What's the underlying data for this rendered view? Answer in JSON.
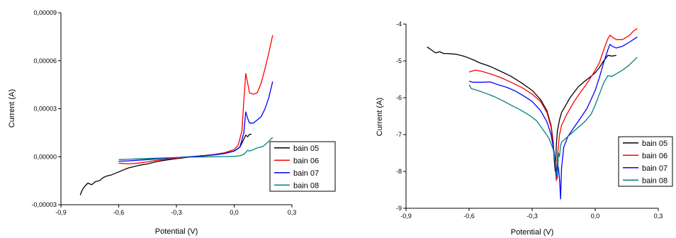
{
  "chart_data": [
    {
      "type": "line",
      "xlabel": "Potential (V)",
      "ylabel": "Current (A)",
      "xlim": [
        -0.9,
        0.3
      ],
      "ylim": [
        -3e-05,
        9e-05
      ],
      "xticks": [
        "-0,9",
        "-0,6",
        "-0,3",
        "0,0",
        "0,3"
      ],
      "xtick_values": [
        -0.9,
        -0.6,
        -0.3,
        0.0,
        0.3
      ],
      "yticks": [
        "-0,00003",
        "0,00000",
        "0,00003",
        "0,00006",
        "0,00009"
      ],
      "ytick_values": [
        -3e-05,
        0.0,
        3e-05,
        6e-05,
        9e-05
      ],
      "legend_position": "bottom-right",
      "series": [
        {
          "name": "bain 05",
          "color": "#000000",
          "points": [
            [
              -0.8,
              -2.4e-05
            ],
            [
              -0.79,
              -2.1e-05
            ],
            [
              -0.78,
              -1.9e-05
            ],
            [
              -0.76,
              -1.65e-05
            ],
            [
              -0.74,
              -1.75e-05
            ],
            [
              -0.72,
              -1.55e-05
            ],
            [
              -0.7,
              -1.5e-05
            ],
            [
              -0.68,
              -1.3e-05
            ],
            [
              -0.66,
              -1.2e-05
            ],
            [
              -0.64,
              -1.15e-05
            ],
            [
              -0.6,
              -9.5e-06
            ],
            [
              -0.55,
              -7e-06
            ],
            [
              -0.5,
              -5.5e-06
            ],
            [
              -0.45,
              -4.5e-06
            ],
            [
              -0.4,
              -3e-06
            ],
            [
              -0.35,
              -2e-06
            ],
            [
              -0.3,
              -1.2e-06
            ],
            [
              -0.25,
              -5e-07
            ],
            [
              -0.2,
              1e-07
            ],
            [
              -0.15,
              6e-07
            ],
            [
              -0.1,
              1.2e-06
            ],
            [
              -0.05,
              2e-06
            ],
            [
              0.0,
              3.5e-06
            ],
            [
              0.03,
              6e-06
            ],
            [
              0.05,
              1.1e-05
            ],
            [
              0.06,
              1.35e-05
            ],
            [
              0.07,
              1.25e-05
            ],
            [
              0.08,
              1.4e-05
            ],
            [
              0.09,
              1.4e-05
            ]
          ]
        },
        {
          "name": "bain 06",
          "color": "#ff0000",
          "points": [
            [
              -0.6,
              -4e-06
            ],
            [
              -0.55,
              -4.5e-06
            ],
            [
              -0.5,
              -4e-06
            ],
            [
              -0.45,
              -3.2e-06
            ],
            [
              -0.4,
              -2.2e-06
            ],
            [
              -0.35,
              -1.5e-06
            ],
            [
              -0.3,
              -8e-07
            ],
            [
              -0.25,
              -3e-07
            ],
            [
              -0.2,
              3e-07
            ],
            [
              -0.15,
              8e-07
            ],
            [
              -0.1,
              1.5e-06
            ],
            [
              -0.05,
              2.5e-06
            ],
            [
              0.0,
              4.5e-06
            ],
            [
              0.02,
              7e-06
            ],
            [
              0.04,
              1.6e-05
            ],
            [
              0.05,
              3.5e-05
            ],
            [
              0.06,
              5.2e-05
            ],
            [
              0.07,
              4.6e-05
            ],
            [
              0.08,
              4e-05
            ],
            [
              0.1,
              3.9e-05
            ],
            [
              0.12,
              4e-05
            ],
            [
              0.14,
              4.6e-05
            ],
            [
              0.16,
              5.5e-05
            ],
            [
              0.18,
              6.5e-05
            ],
            [
              0.2,
              7.6e-05
            ]
          ]
        },
        {
          "name": "bain 07",
          "color": "#0000ff",
          "points": [
            [
              -0.6,
              -2.8e-06
            ],
            [
              -0.55,
              -2.6e-06
            ],
            [
              -0.5,
              -2.2e-06
            ],
            [
              -0.45,
              -1.8e-06
            ],
            [
              -0.4,
              -1.3e-06
            ],
            [
              -0.35,
              -9e-07
            ],
            [
              -0.3,
              -5e-07
            ],
            [
              -0.25,
              -1e-07
            ],
            [
              -0.2,
              3e-07
            ],
            [
              -0.15,
              7e-07
            ],
            [
              -0.1,
              1.2e-06
            ],
            [
              -0.05,
              2e-06
            ],
            [
              0.0,
              3.5e-06
            ],
            [
              0.03,
              6e-06
            ],
            [
              0.05,
              1.5e-05
            ],
            [
              0.06,
              2.8e-05
            ],
            [
              0.07,
              2.4e-05
            ],
            [
              0.08,
              2.1e-05
            ],
            [
              0.1,
              2.1e-05
            ],
            [
              0.12,
              2.3e-05
            ],
            [
              0.14,
              2.5e-05
            ],
            [
              0.16,
              3e-05
            ],
            [
              0.18,
              3.7e-05
            ],
            [
              0.2,
              4.7e-05
            ]
          ]
        },
        {
          "name": "bain 08",
          "color": "#008080",
          "points": [
            [
              -0.6,
              -1.8e-06
            ],
            [
              -0.55,
              -1.6e-06
            ],
            [
              -0.5,
              -1.3e-06
            ],
            [
              -0.45,
              -1.1e-06
            ],
            [
              -0.4,
              -9e-07
            ],
            [
              -0.35,
              -7e-07
            ],
            [
              -0.3,
              -5e-07
            ],
            [
              -0.25,
              -3e-07
            ],
            [
              -0.2,
              -2e-07
            ],
            [
              -0.15,
              -1e-07
            ],
            [
              -0.1,
              0.0
            ],
            [
              -0.05,
              1e-07
            ],
            [
              0.0,
              2e-07
            ],
            [
              0.03,
              6e-07
            ],
            [
              0.05,
              1.5e-06
            ],
            [
              0.07,
              4e-06
            ],
            [
              0.08,
              3.5e-06
            ],
            [
              0.1,
              4.5e-06
            ],
            [
              0.12,
              5.5e-06
            ],
            [
              0.15,
              6.5e-06
            ],
            [
              0.17,
              8.5e-06
            ],
            [
              0.2,
              1.2e-05
            ]
          ]
        }
      ]
    },
    {
      "type": "line",
      "xlabel": "Potential (V)",
      "ylabel": "Current (A)",
      "xlim": [
        -0.9,
        0.3
      ],
      "ylim": [
        -9,
        -4
      ],
      "xticks": [
        "-0,9",
        "-0,6",
        "-0,3",
        "0,0",
        "0,3"
      ],
      "xtick_values": [
        -0.9,
        -0.6,
        -0.3,
        0.0,
        0.3
      ],
      "yticks": [
        "-9",
        "-8",
        "-7",
        "-6",
        "-5",
        "-4"
      ],
      "ytick_values": [
        -9,
        -8,
        -7,
        -6,
        -5,
        -4
      ],
      "legend_position": "bottom-right",
      "series": [
        {
          "name": "bain 05",
          "color": "#000000",
          "points": [
            [
              -0.8,
              -4.62
            ],
            [
              -0.78,
              -4.7
            ],
            [
              -0.76,
              -4.78
            ],
            [
              -0.74,
              -4.75
            ],
            [
              -0.72,
              -4.8
            ],
            [
              -0.7,
              -4.8
            ],
            [
              -0.66,
              -4.82
            ],
            [
              -0.62,
              -4.88
            ],
            [
              -0.58,
              -4.97
            ],
            [
              -0.55,
              -5.05
            ],
            [
              -0.5,
              -5.15
            ],
            [
              -0.45,
              -5.28
            ],
            [
              -0.4,
              -5.42
            ],
            [
              -0.35,
              -5.6
            ],
            [
              -0.3,
              -5.8
            ],
            [
              -0.26,
              -6.05
            ],
            [
              -0.23,
              -6.35
            ],
            [
              -0.21,
              -6.75
            ],
            [
              -0.2,
              -7.2
            ],
            [
              -0.195,
              -7.7
            ],
            [
              -0.19,
              -8.0
            ],
            [
              -0.185,
              -7.3
            ],
            [
              -0.18,
              -6.9
            ],
            [
              -0.17,
              -6.6
            ],
            [
              -0.16,
              -6.4
            ],
            [
              -0.14,
              -6.2
            ],
            [
              -0.12,
              -6.0
            ],
            [
              -0.1,
              -5.85
            ],
            [
              -0.08,
              -5.7
            ],
            [
              -0.05,
              -5.55
            ],
            [
              -0.02,
              -5.42
            ],
            [
              0.0,
              -5.32
            ],
            [
              0.02,
              -5.18
            ],
            [
              0.04,
              -5.0
            ],
            [
              0.06,
              -4.85
            ],
            [
              0.08,
              -4.87
            ],
            [
              0.1,
              -4.85
            ]
          ]
        },
        {
          "name": "bain 06",
          "color": "#ff0000",
          "points": [
            [
              -0.6,
              -5.3
            ],
            [
              -0.57,
              -5.25
            ],
            [
              -0.54,
              -5.28
            ],
            [
              -0.5,
              -5.35
            ],
            [
              -0.45,
              -5.45
            ],
            [
              -0.4,
              -5.58
            ],
            [
              -0.35,
              -5.72
            ],
            [
              -0.3,
              -5.9
            ],
            [
              -0.26,
              -6.1
            ],
            [
              -0.23,
              -6.4
            ],
            [
              -0.21,
              -6.8
            ],
            [
              -0.2,
              -7.3
            ],
            [
              -0.19,
              -7.8
            ],
            [
              -0.185,
              -8.25
            ],
            [
              -0.18,
              -7.6
            ],
            [
              -0.17,
              -7.0
            ],
            [
              -0.16,
              -6.75
            ],
            [
              -0.14,
              -6.5
            ],
            [
              -0.12,
              -6.3
            ],
            [
              -0.1,
              -6.1
            ],
            [
              -0.07,
              -5.85
            ],
            [
              -0.04,
              -5.62
            ],
            [
              -0.01,
              -5.35
            ],
            [
              0.02,
              -5.05
            ],
            [
              0.04,
              -4.7
            ],
            [
              0.06,
              -4.4
            ],
            [
              0.07,
              -4.3
            ],
            [
              0.08,
              -4.35
            ],
            [
              0.1,
              -4.42
            ],
            [
              0.13,
              -4.42
            ],
            [
              0.16,
              -4.32
            ],
            [
              0.18,
              -4.2
            ],
            [
              0.2,
              -4.12
            ]
          ]
        },
        {
          "name": "bain 07",
          "color": "#0000ff",
          "points": [
            [
              -0.6,
              -5.55
            ],
            [
              -0.58,
              -5.58
            ],
            [
              -0.54,
              -5.58
            ],
            [
              -0.5,
              -5.57
            ],
            [
              -0.46,
              -5.65
            ],
            [
              -0.42,
              -5.72
            ],
            [
              -0.38,
              -5.82
            ],
            [
              -0.34,
              -5.95
            ],
            [
              -0.3,
              -6.1
            ],
            [
              -0.26,
              -6.35
            ],
            [
              -0.23,
              -6.65
            ],
            [
              -0.21,
              -7.0
            ],
            [
              -0.195,
              -7.5
            ],
            [
              -0.185,
              -8.1
            ],
            [
              -0.18,
              -7.8
            ],
            [
              -0.175,
              -7.9
            ],
            [
              -0.17,
              -8.2
            ],
            [
              -0.165,
              -8.75
            ],
            [
              -0.16,
              -7.9
            ],
            [
              -0.15,
              -7.35
            ],
            [
              -0.13,
              -7.05
            ],
            [
              -0.1,
              -6.8
            ],
            [
              -0.07,
              -6.55
            ],
            [
              -0.04,
              -6.3
            ],
            [
              -0.02,
              -6.05
            ],
            [
              0.0,
              -5.8
            ],
            [
              0.02,
              -5.45
            ],
            [
              0.04,
              -5.05
            ],
            [
              0.06,
              -4.7
            ],
            [
              0.07,
              -4.55
            ],
            [
              0.08,
              -4.6
            ],
            [
              0.1,
              -4.65
            ],
            [
              0.13,
              -4.6
            ],
            [
              0.16,
              -4.5
            ],
            [
              0.2,
              -4.35
            ]
          ]
        },
        {
          "name": "bain 08",
          "color": "#008080",
          "points": [
            [
              -0.6,
              -5.65
            ],
            [
              -0.59,
              -5.75
            ],
            [
              -0.56,
              -5.8
            ],
            [
              -0.52,
              -5.88
            ],
            [
              -0.48,
              -5.97
            ],
            [
              -0.44,
              -6.08
            ],
            [
              -0.4,
              -6.2
            ],
            [
              -0.36,
              -6.32
            ],
            [
              -0.32,
              -6.45
            ],
            [
              -0.28,
              -6.62
            ],
            [
              -0.25,
              -6.85
            ],
            [
              -0.22,
              -7.1
            ],
            [
              -0.2,
              -7.4
            ],
            [
              -0.19,
              -7.75
            ],
            [
              -0.18,
              -8.2
            ],
            [
              -0.175,
              -7.5
            ],
            [
              -0.17,
              -7.6
            ],
            [
              -0.165,
              -7.3
            ],
            [
              -0.16,
              -7.2
            ],
            [
              -0.14,
              -7.1
            ],
            [
              -0.11,
              -6.95
            ],
            [
              -0.08,
              -6.8
            ],
            [
              -0.05,
              -6.65
            ],
            [
              -0.02,
              -6.45
            ],
            [
              0.0,
              -6.2
            ],
            [
              0.02,
              -5.9
            ],
            [
              0.04,
              -5.6
            ],
            [
              0.06,
              -5.4
            ],
            [
              0.08,
              -5.42
            ],
            [
              0.1,
              -5.35
            ],
            [
              0.13,
              -5.25
            ],
            [
              0.16,
              -5.12
            ],
            [
              0.2,
              -4.9
            ]
          ]
        }
      ]
    }
  ]
}
